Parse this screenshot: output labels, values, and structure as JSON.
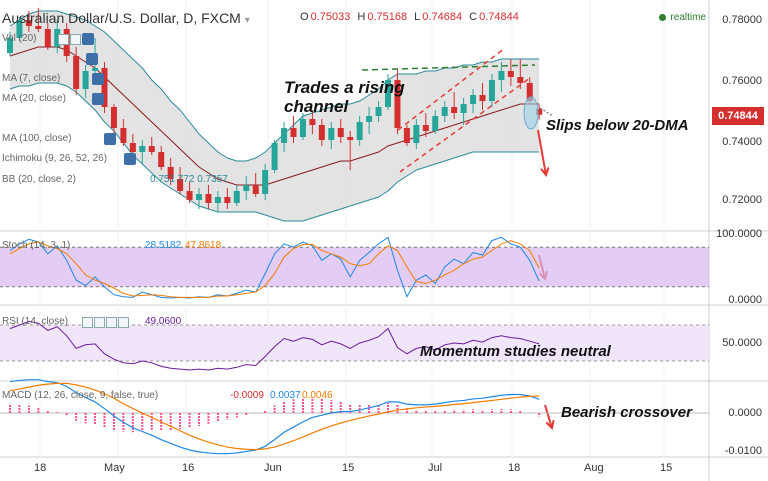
{
  "header": {
    "title": "Australian Dollar/U.S. Dollar, D, FXCM",
    "ohlc": [
      {
        "label": "O",
        "value": "0.75033"
      },
      {
        "label": "H",
        "value": "0.75168"
      },
      {
        "label": "L",
        "value": "0.74684"
      },
      {
        "label": "C",
        "value": "0.74844"
      }
    ],
    "realtime": "realtime",
    "current_price": "0.74844"
  },
  "indicators": {
    "main": [
      {
        "label": "Vol (20)",
        "values": ""
      },
      {
        "label": "MA (7, close)",
        "values": ""
      },
      {
        "label": "MA (20, close)",
        "values": ""
      },
      {
        "label": "MA (100, close)",
        "values": ""
      },
      {
        "label": "Ichimoku (9, 26, 52, 26)",
        "values": ""
      },
      {
        "label": "BB (20, close, 2)",
        "values": "0.751 772 0.7357"
      }
    ],
    "stoch": {
      "label": "Stoch (14, 3, 1)",
      "k": "28.5182",
      "d": "47.8618"
    },
    "rsi": {
      "label": "RSI (14, close)",
      "value": "49.0600"
    },
    "macd": {
      "label": "MACD (12, 26, close, 9, false, true)",
      "hist": "-0.0009",
      "macd": "0.0037",
      "signal": "0.0046"
    }
  },
  "axes": {
    "price_ticks": [
      "0.78000",
      "0.76000",
      "0.74000",
      "0.72000"
    ],
    "stoch_ticks": [
      "100.0000",
      "0.0000"
    ],
    "rsi_ticks": [
      "50.0000"
    ],
    "macd_ticks": [
      "0.0000",
      "-0.0100"
    ],
    "time_ticks": [
      "18",
      "May",
      "16",
      "Jun",
      "15",
      "Jul",
      "18",
      "Aug",
      "15"
    ]
  },
  "annotations": {
    "channel_line1": "Trades a rising",
    "channel_line2": "channel",
    "slips": "Slips below 20-DMA",
    "momentum": "Momentum studies neutral",
    "bearish": "Bearish crossover"
  },
  "colors": {
    "up": "#26a69a",
    "down": "#d32f2f",
    "bb_fill": "#d9d9d9",
    "stoch_band": "#d9b8f0",
    "rsi_band": "#f0e2fa",
    "ma": "#8b1a1a",
    "bb_line": "#2a8a9a",
    "stoch_k": "#1e88e5",
    "stoch_d": "#f57c00",
    "rsi": "#6a1b9a",
    "macd": "#1e88e5",
    "signal": "#f57c00",
    "annotation_arrow": "#e53935",
    "trend_green": "#2e7d32"
  },
  "chart_data": {
    "type": "candlestick",
    "symbol": "AUD/USD",
    "timeframe": "D",
    "price_range": [
      0.7085,
      0.7885
    ],
    "candles": [
      {
        "o": 0.769,
        "h": 0.776,
        "l": 0.768,
        "c": 0.774
      },
      {
        "o": 0.774,
        "h": 0.781,
        "l": 0.773,
        "c": 0.78
      },
      {
        "o": 0.78,
        "h": 0.783,
        "l": 0.776,
        "c": 0.778
      },
      {
        "o": 0.778,
        "h": 0.784,
        "l": 0.776,
        "c": 0.777
      },
      {
        "o": 0.777,
        "h": 0.779,
        "l": 0.77,
        "c": 0.771
      },
      {
        "o": 0.771,
        "h": 0.78,
        "l": 0.769,
        "c": 0.777
      },
      {
        "o": 0.777,
        "h": 0.779,
        "l": 0.766,
        "c": 0.768
      },
      {
        "o": 0.768,
        "h": 0.771,
        "l": 0.755,
        "c": 0.757
      },
      {
        "o": 0.757,
        "h": 0.765,
        "l": 0.754,
        "c": 0.763
      },
      {
        "o": 0.763,
        "h": 0.774,
        "l": 0.76,
        "c": 0.764
      },
      {
        "o": 0.764,
        "h": 0.766,
        "l": 0.749,
        "c": 0.751
      },
      {
        "o": 0.751,
        "h": 0.752,
        "l": 0.742,
        "c": 0.744
      },
      {
        "o": 0.744,
        "h": 0.747,
        "l": 0.738,
        "c": 0.739
      },
      {
        "o": 0.739,
        "h": 0.742,
        "l": 0.734,
        "c": 0.736
      },
      {
        "o": 0.736,
        "h": 0.74,
        "l": 0.732,
        "c": 0.738
      },
      {
        "o": 0.738,
        "h": 0.741,
        "l": 0.735,
        "c": 0.736
      },
      {
        "o": 0.736,
        "h": 0.738,
        "l": 0.73,
        "c": 0.731
      },
      {
        "o": 0.731,
        "h": 0.734,
        "l": 0.725,
        "c": 0.727
      },
      {
        "o": 0.727,
        "h": 0.731,
        "l": 0.722,
        "c": 0.723
      },
      {
        "o": 0.723,
        "h": 0.726,
        "l": 0.719,
        "c": 0.72
      },
      {
        "o": 0.72,
        "h": 0.724,
        "l": 0.717,
        "c": 0.722
      },
      {
        "o": 0.722,
        "h": 0.725,
        "l": 0.717,
        "c": 0.719
      },
      {
        "o": 0.719,
        "h": 0.723,
        "l": 0.716,
        "c": 0.721
      },
      {
        "o": 0.721,
        "h": 0.724,
        "l": 0.717,
        "c": 0.719
      },
      {
        "o": 0.719,
        "h": 0.725,
        "l": 0.718,
        "c": 0.723
      },
      {
        "o": 0.723,
        "h": 0.728,
        "l": 0.72,
        "c": 0.725
      },
      {
        "o": 0.725,
        "h": 0.729,
        "l": 0.721,
        "c": 0.722
      },
      {
        "o": 0.722,
        "h": 0.732,
        "l": 0.72,
        "c": 0.73
      },
      {
        "o": 0.73,
        "h": 0.74,
        "l": 0.729,
        "c": 0.739
      },
      {
        "o": 0.739,
        "h": 0.746,
        "l": 0.736,
        "c": 0.744
      },
      {
        "o": 0.744,
        "h": 0.748,
        "l": 0.739,
        "c": 0.741
      },
      {
        "o": 0.741,
        "h": 0.749,
        "l": 0.74,
        "c": 0.747
      },
      {
        "o": 0.747,
        "h": 0.75,
        "l": 0.742,
        "c": 0.745
      },
      {
        "o": 0.745,
        "h": 0.747,
        "l": 0.738,
        "c": 0.74
      },
      {
        "o": 0.74,
        "h": 0.746,
        "l": 0.737,
        "c": 0.744
      },
      {
        "o": 0.744,
        "h": 0.747,
        "l": 0.739,
        "c": 0.741
      },
      {
        "o": 0.741,
        "h": 0.743,
        "l": 0.73,
        "c": 0.74
      },
      {
        "o": 0.74,
        "h": 0.748,
        "l": 0.738,
        "c": 0.746
      },
      {
        "o": 0.746,
        "h": 0.751,
        "l": 0.742,
        "c": 0.748
      },
      {
        "o": 0.748,
        "h": 0.753,
        "l": 0.746,
        "c": 0.751
      },
      {
        "o": 0.751,
        "h": 0.762,
        "l": 0.75,
        "c": 0.76
      },
      {
        "o": 0.76,
        "h": 0.764,
        "l": 0.742,
        "c": 0.744
      },
      {
        "o": 0.744,
        "h": 0.745,
        "l": 0.738,
        "c": 0.739
      },
      {
        "o": 0.739,
        "h": 0.747,
        "l": 0.737,
        "c": 0.745
      },
      {
        "o": 0.745,
        "h": 0.749,
        "l": 0.741,
        "c": 0.743
      },
      {
        "o": 0.743,
        "h": 0.75,
        "l": 0.742,
        "c": 0.748
      },
      {
        "o": 0.748,
        "h": 0.753,
        "l": 0.746,
        "c": 0.751
      },
      {
        "o": 0.751,
        "h": 0.756,
        "l": 0.747,
        "c": 0.749
      },
      {
        "o": 0.749,
        "h": 0.754,
        "l": 0.745,
        "c": 0.752
      },
      {
        "o": 0.752,
        "h": 0.757,
        "l": 0.749,
        "c": 0.755
      },
      {
        "o": 0.755,
        "h": 0.759,
        "l": 0.75,
        "c": 0.753
      },
      {
        "o": 0.753,
        "h": 0.762,
        "l": 0.751,
        "c": 0.76
      },
      {
        "o": 0.76,
        "h": 0.766,
        "l": 0.756,
        "c": 0.763
      },
      {
        "o": 0.763,
        "h": 0.767,
        "l": 0.758,
        "c": 0.761
      },
      {
        "o": 0.761,
        "h": 0.767,
        "l": 0.757,
        "c": 0.759
      },
      {
        "o": 0.759,
        "h": 0.761,
        "l": 0.752,
        "c": 0.753
      },
      {
        "o": 0.7503,
        "h": 0.7517,
        "l": 0.7468,
        "c": 0.7484
      }
    ],
    "ma20": [
      0.768,
      0.769,
      0.77,
      0.771,
      0.771,
      0.771,
      0.77,
      0.768,
      0.766,
      0.764,
      0.761,
      0.758,
      0.755,
      0.752,
      0.749,
      0.746,
      0.743,
      0.74,
      0.737,
      0.734,
      0.731,
      0.729,
      0.727,
      0.726,
      0.725,
      0.725,
      0.725,
      0.725,
      0.726,
      0.727,
      0.728,
      0.729,
      0.73,
      0.731,
      0.732,
      0.733,
      0.733,
      0.734,
      0.735,
      0.736,
      0.738,
      0.739,
      0.74,
      0.741,
      0.742,
      0.743,
      0.744,
      0.745,
      0.746,
      0.747,
      0.748,
      0.749,
      0.75,
      0.751,
      0.752,
      0.752,
      0.752
    ],
    "bb_upper": [
      0.778,
      0.78,
      0.782,
      0.783,
      0.783,
      0.783,
      0.782,
      0.781,
      0.78,
      0.778,
      0.776,
      0.773,
      0.77,
      0.767,
      0.764,
      0.76,
      0.757,
      0.753,
      0.75,
      0.746,
      0.742,
      0.739,
      0.736,
      0.734,
      0.733,
      0.733,
      0.734,
      0.736,
      0.739,
      0.742,
      0.745,
      0.748,
      0.749,
      0.75,
      0.751,
      0.752,
      0.752,
      0.753,
      0.755,
      0.757,
      0.76,
      0.762,
      0.762,
      0.762,
      0.763,
      0.763,
      0.764,
      0.764,
      0.765,
      0.765,
      0.766,
      0.766,
      0.767,
      0.767,
      0.767,
      0.767,
      0.767
    ],
    "bb_lower": [
      0.757,
      0.758,
      0.758,
      0.759,
      0.759,
      0.759,
      0.758,
      0.756,
      0.753,
      0.75,
      0.746,
      0.743,
      0.739,
      0.735,
      0.732,
      0.729,
      0.726,
      0.724,
      0.722,
      0.72,
      0.718,
      0.717,
      0.716,
      0.716,
      0.716,
      0.716,
      0.716,
      0.715,
      0.714,
      0.713,
      0.713,
      0.713,
      0.714,
      0.715,
      0.716,
      0.717,
      0.718,
      0.719,
      0.72,
      0.721,
      0.723,
      0.726,
      0.728,
      0.73,
      0.731,
      0.732,
      0.733,
      0.734,
      0.735,
      0.736,
      0.736,
      0.736,
      0.736,
      0.736,
      0.736,
      0.736,
      0.736
    ],
    "stoch_k": [
      75,
      85,
      92,
      88,
      70,
      82,
      60,
      30,
      22,
      35,
      20,
      8,
      5,
      4,
      12,
      8,
      4,
      3,
      4,
      3,
      5,
      4,
      8,
      6,
      10,
      15,
      12,
      40,
      70,
      85,
      80,
      88,
      82,
      60,
      70,
      62,
      35,
      60,
      72,
      85,
      95,
      45,
      5,
      30,
      38,
      25,
      50,
      62,
      55,
      72,
      68,
      90,
      95,
      85,
      80,
      60,
      28.5
    ],
    "stoch_d": [
      70,
      78,
      85,
      88,
      82,
      78,
      70,
      55,
      38,
      30,
      25,
      18,
      10,
      6,
      7,
      8,
      7,
      5,
      4,
      4,
      4,
      4,
      6,
      6,
      8,
      10,
      12,
      22,
      40,
      65,
      78,
      84,
      84,
      75,
      70,
      65,
      55,
      52,
      55,
      70,
      82,
      75,
      50,
      28,
      25,
      30,
      38,
      45,
      55,
      62,
      65,
      75,
      85,
      90,
      85,
      75,
      47.9
    ],
    "rsi": [
      66,
      70,
      74,
      72,
      64,
      68,
      58,
      44,
      48,
      49,
      38,
      32,
      28,
      27,
      30,
      28,
      24,
      22,
      21,
      20,
      21,
      20,
      22,
      21,
      23,
      26,
      25,
      35,
      46,
      55,
      52,
      56,
      54,
      48,
      52,
      49,
      44,
      50,
      53,
      57,
      66,
      45,
      38,
      44,
      46,
      42,
      48,
      50,
      49,
      53,
      51,
      56,
      58,
      56,
      55,
      52,
      49.06
    ],
    "macd": [
      0.0085,
      0.0088,
      0.009,
      0.009,
      0.0085,
      0.0082,
      0.0072,
      0.0055,
      0.0042,
      0.003,
      0.0012,
      -0.0008,
      -0.0025,
      -0.004,
      -0.005,
      -0.006,
      -0.0072,
      -0.0082,
      -0.0092,
      -0.01,
      -0.0105,
      -0.0108,
      -0.011,
      -0.011,
      -0.0108,
      -0.0104,
      -0.01,
      -0.009,
      -0.0072,
      -0.0052,
      -0.0038,
      -0.0024,
      -0.0012,
      -0.0006,
      0.0,
      0.0004,
      0.0004,
      0.0008,
      0.0014,
      0.002,
      0.003,
      0.003,
      0.0024,
      0.0022,
      0.0022,
      0.0024,
      0.0028,
      0.0032,
      0.0034,
      0.0038,
      0.004,
      0.0044,
      0.0048,
      0.005,
      0.005,
      0.0046,
      0.0037
    ],
    "signal": [
      0.006,
      0.0065,
      0.007,
      0.0075,
      0.0078,
      0.008,
      0.008,
      0.0076,
      0.007,
      0.0062,
      0.0052,
      0.004,
      0.0025,
      0.0012,
      0.0,
      -0.0012,
      -0.0024,
      -0.0036,
      -0.0048,
      -0.006,
      -0.007,
      -0.0079,
      -0.0086,
      -0.0092,
      -0.0096,
      -0.0098,
      -0.0099,
      -0.0097,
      -0.0092,
      -0.0084,
      -0.0075,
      -0.0065,
      -0.0054,
      -0.0044,
      -0.0035,
      -0.0027,
      -0.002,
      -0.0014,
      -0.0008,
      -0.0003,
      0.0003,
      0.0008,
      0.0011,
      0.0014,
      0.0016,
      0.0018,
      0.002,
      0.0023,
      0.0025,
      0.0028,
      0.0031,
      0.0034,
      0.0037,
      0.004,
      0.0043,
      0.0045,
      0.0046
    ]
  }
}
